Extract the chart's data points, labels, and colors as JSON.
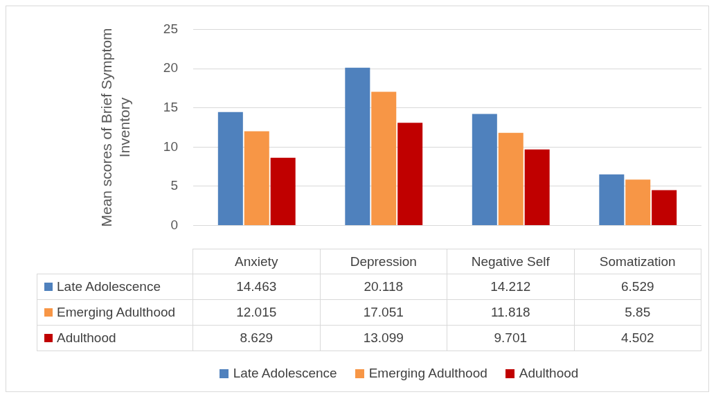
{
  "chart_data": {
    "type": "bar",
    "ylabel": "Mean scores of Brief Symptom Inventory",
    "categories": [
      "Anxiety",
      "Depression",
      "Negative Self",
      "Somatization"
    ],
    "series": [
      {
        "name": "Late Adolescence",
        "color": "#4f81bd",
        "values": [
          14.463,
          20.118,
          14.212,
          6.529
        ]
      },
      {
        "name": "Emerging Adulthood",
        "color": "#f79646",
        "values": [
          12.015,
          17.051,
          11.818,
          5.85
        ]
      },
      {
        "name": "Adulthood",
        "color": "#c00000",
        "values": [
          8.629,
          13.099,
          9.701,
          4.502
        ]
      }
    ],
    "ylim": [
      0,
      25
    ],
    "yticks": [
      0,
      5,
      10,
      15,
      20,
      25
    ],
    "grid": "y",
    "legend": "bottom",
    "data_labels": true
  }
}
